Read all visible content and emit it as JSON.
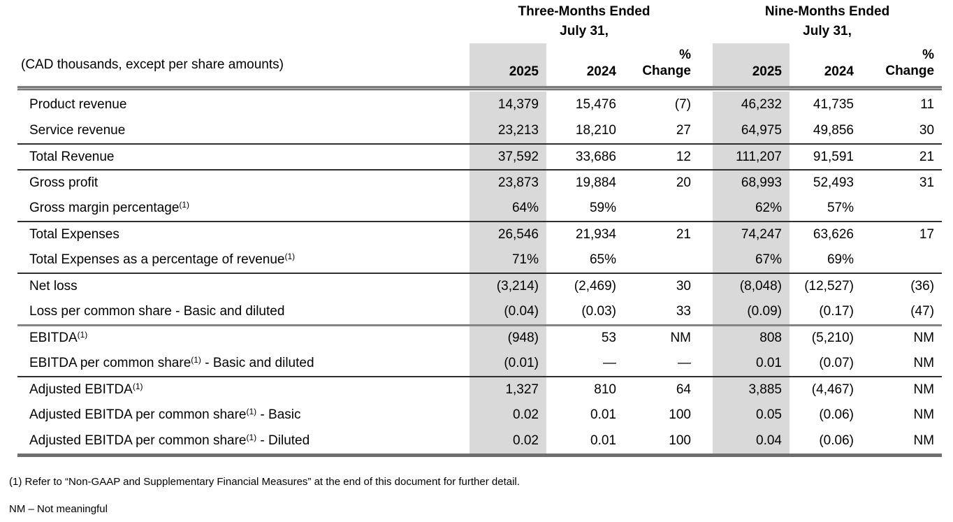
{
  "table": {
    "unit_label": "(CAD thousands, except per share amounts)",
    "groups": [
      {
        "title_line1": "Three-Months Ended",
        "title_line2": "July 31,"
      },
      {
        "title_line1": "Nine-Months Ended",
        "title_line2": "July 31,"
      }
    ],
    "columns": {
      "y2025": "2025",
      "y2024": "2024",
      "pct_line1": "%",
      "pct_line2": "Change"
    },
    "rows": [
      {
        "label": "Product revenue",
        "sup": "",
        "suffix": "",
        "values": [
          "14,379",
          "15,476",
          "(7)",
          "46,232",
          "41,735",
          "11"
        ]
      },
      {
        "label": "Service revenue",
        "sup": "",
        "suffix": "",
        "values": [
          "23,213",
          "18,210",
          "27",
          "64,975",
          "49,856",
          "30"
        ]
      },
      {
        "label": "Total Revenue",
        "sup": "",
        "suffix": "",
        "values": [
          "37,592",
          "33,686",
          "12",
          "111,207",
          "91,591",
          "21"
        ]
      },
      {
        "label": "Gross profit",
        "sup": "",
        "suffix": "",
        "values": [
          "23,873",
          "19,884",
          "20",
          "68,993",
          "52,493",
          "31"
        ]
      },
      {
        "label": "Gross margin percentage",
        "sup": "(1)",
        "suffix": "",
        "values": [
          "64%",
          "59%",
          "",
          "62%",
          "57%",
          ""
        ]
      },
      {
        "label": "Total Expenses",
        "sup": "",
        "suffix": "",
        "values": [
          "26,546",
          "21,934",
          "21",
          "74,247",
          "63,626",
          "17"
        ]
      },
      {
        "label": "Total Expenses as a percentage of revenue",
        "sup": "(1)",
        "suffix": "",
        "values": [
          "71%",
          "65%",
          "",
          "67%",
          "69%",
          ""
        ]
      },
      {
        "label": "Net loss",
        "sup": "",
        "suffix": "",
        "values": [
          "(3,214)",
          "(2,469)",
          "30",
          "(8,048)",
          "(12,527)",
          "(36)"
        ]
      },
      {
        "label": "Loss per common share - Basic and diluted",
        "sup": "",
        "suffix": "",
        "values": [
          "(0.04)",
          "(0.03)",
          "33",
          "(0.09)",
          "(0.17)",
          "(47)"
        ]
      },
      {
        "label": "EBITDA",
        "sup": "(1)",
        "suffix": "",
        "values": [
          "(948)",
          "53",
          "NM",
          "808",
          "(5,210)",
          "NM"
        ]
      },
      {
        "label": "EBITDA per common share",
        "sup": "(1)",
        "suffix": " - Basic and diluted",
        "values": [
          "(0.01)",
          "—",
          "—",
          "0.01",
          "(0.07)",
          "NM"
        ]
      },
      {
        "label": "Adjusted EBITDA",
        "sup": "(1)",
        "suffix": "",
        "values": [
          "1,327",
          "810",
          "64",
          "3,885",
          "(4,467)",
          "NM"
        ]
      },
      {
        "label": "Adjusted EBITDA per common share",
        "sup": "(1)",
        "suffix": " - Basic",
        "values": [
          "0.02",
          "0.01",
          "100",
          "0.05",
          "(0.06)",
          "NM"
        ]
      },
      {
        "label": "Adjusted EBITDA per common share",
        "sup": "(1)",
        "suffix": " - Diluted",
        "values": [
          "0.02",
          "0.01",
          "100",
          "0.04",
          "(0.06)",
          "NM"
        ]
      }
    ]
  },
  "footnotes": {
    "note1": "(1) Refer to “Non-GAAP and Supplementary Financial Measures” at the end of this document for further detail.",
    "note2": "NM – Not meaningful"
  },
  "colors": {
    "column_shade": "#d9d9d9",
    "rule_gray": "#7f7f7f",
    "rule_bottom": "#6e6e6e",
    "separator_dark": "#2e2e2e",
    "text": "#000000"
  }
}
